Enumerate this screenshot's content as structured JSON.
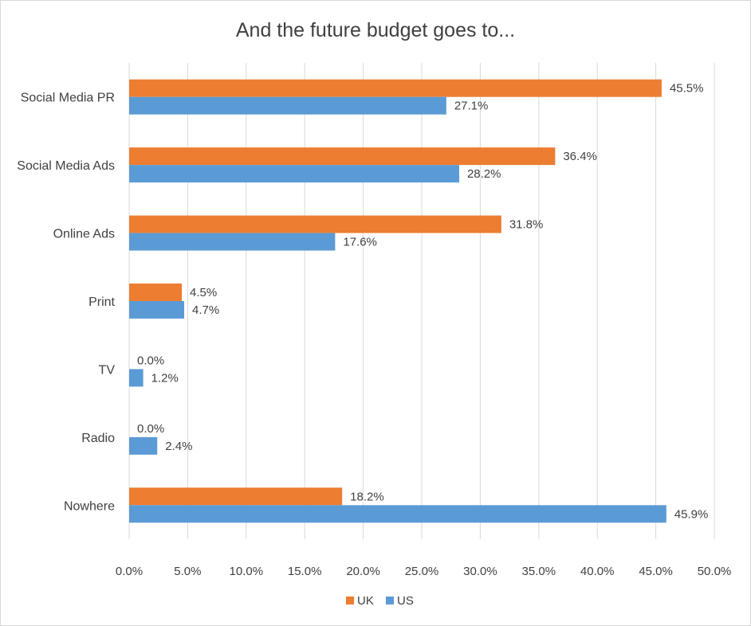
{
  "chart_data": {
    "type": "bar",
    "orientation": "horizontal",
    "title": "And the future budget goes to...",
    "categories": [
      "Social Media PR",
      "Social Media Ads",
      "Online Ads",
      "Print",
      "TV",
      "Radio",
      "Nowhere"
    ],
    "series": [
      {
        "name": "UK",
        "color": "#ED7D31",
        "values": [
          45.5,
          36.4,
          31.8,
          4.5,
          0.0,
          0.0,
          18.2
        ],
        "labels": [
          "45.5%",
          "36.4%",
          "31.8%",
          "4.5%",
          "0.0%",
          "0.0%",
          "18.2%"
        ]
      },
      {
        "name": "US",
        "color": "#5B9BD5",
        "values": [
          27.1,
          28.2,
          17.6,
          4.7,
          1.2,
          2.4,
          45.9
        ],
        "labels": [
          "27.1%",
          "28.2%",
          "17.6%",
          "4.7%",
          "1.2%",
          "2.4%",
          "45.9%"
        ]
      }
    ],
    "xlim": [
      0,
      50
    ],
    "xticks": [
      "0.0%",
      "5.0%",
      "10.0%",
      "15.0%",
      "20.0%",
      "25.0%",
      "30.0%",
      "35.0%",
      "40.0%",
      "45.0%",
      "50.0%"
    ],
    "grid": true,
    "legend_position": "bottom"
  }
}
